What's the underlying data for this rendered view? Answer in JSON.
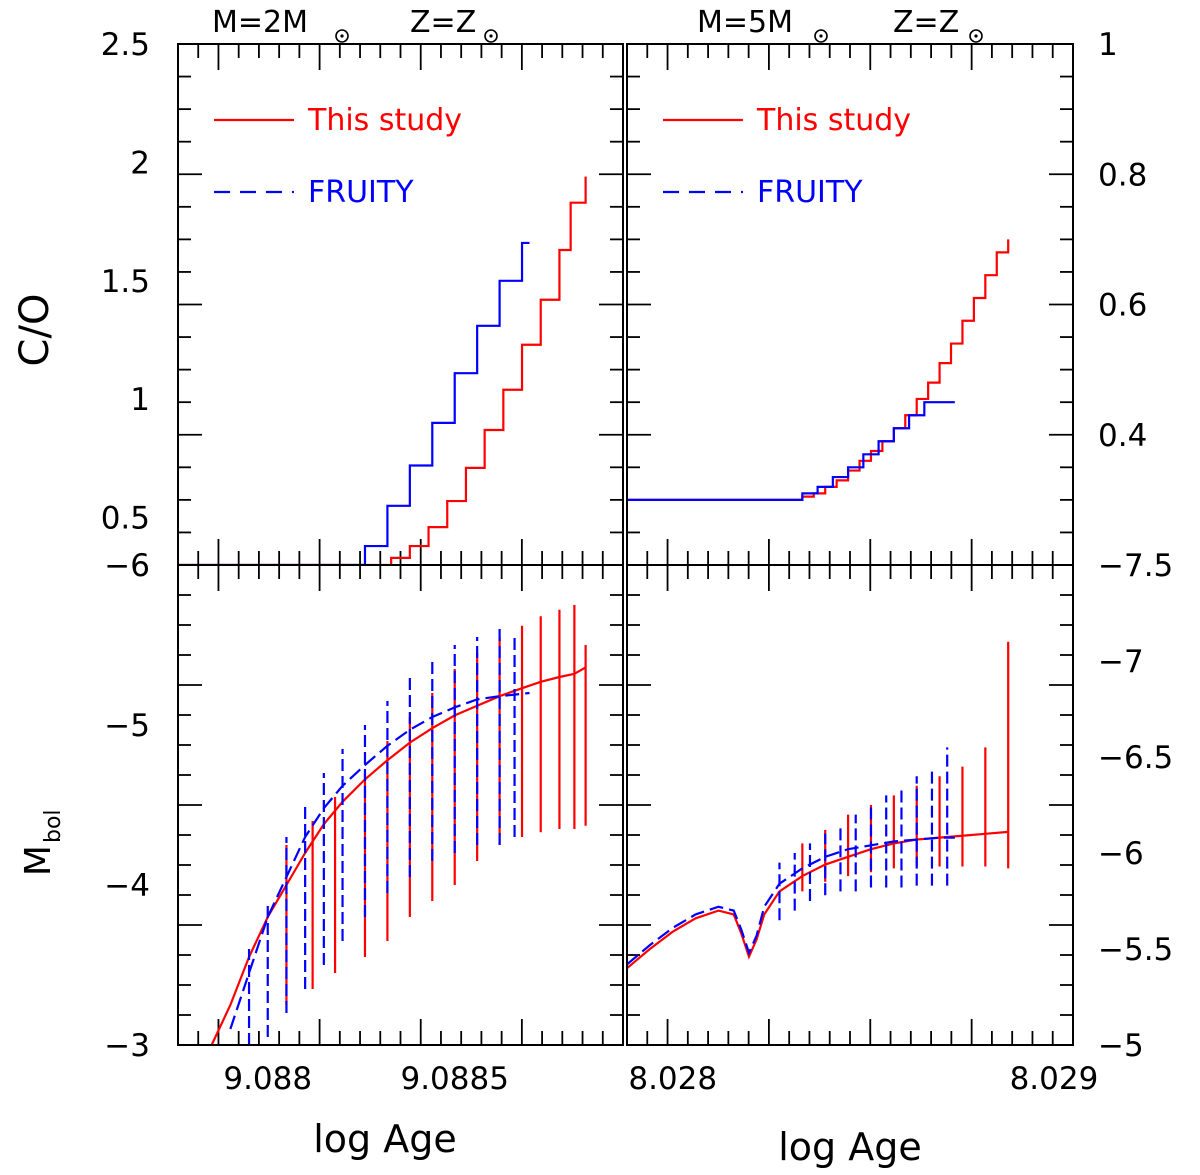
{
  "figure": {
    "left_panel_header": {
      "mass": "M=2M",
      "metallicity": "Z=Z"
    },
    "right_panel_header": {
      "mass": "M=5M",
      "metallicity": "Z=Z"
    },
    "xlabel": "log Age",
    "ylabel_top": "C/O",
    "ylabel_bottom_main": "M",
    "ylabel_bottom_sub": "bol",
    "colors": {
      "this_study": "#ff0000",
      "fruity": "#0000ff",
      "axis": "#000000"
    }
  },
  "chart_data": [
    {
      "id": "top-left",
      "type": "line",
      "ylabel": "C/O",
      "xlim": [
        9.08776,
        9.08895
      ],
      "ylim": [
        0.3,
        2.5
      ],
      "yticks": [
        "0.5",
        "1",
        "1.5",
        "2",
        "2.5"
      ],
      "ytick_values": [
        0.5,
        1.0,
        1.5,
        2.0,
        2.5
      ],
      "legend": {
        "placement": "top-left",
        "entries": [
          {
            "label": "This study",
            "style": "solid",
            "color": "#ff0000"
          },
          {
            "label": "FRUITY",
            "style": "dashed",
            "color": "#0000ff"
          }
        ]
      },
      "series": [
        {
          "name": "This study",
          "style": "step",
          "color": "#ff0000",
          "x": [
            9.08776,
            9.08833,
            9.08838,
            9.08843,
            9.08848,
            9.08853,
            9.08858,
            9.08863,
            9.08868,
            9.08873,
            9.08878,
            9.08881,
            9.08885
          ],
          "y": [
            0.3,
            0.33,
            0.38,
            0.46,
            0.57,
            0.71,
            0.87,
            1.04,
            1.23,
            1.42,
            1.63,
            1.83,
            1.94
          ]
        },
        {
          "name": "FRUITY",
          "style": "step",
          "color": "#0000ff",
          "x": [
            9.08776,
            9.08826,
            9.08832,
            9.08838,
            9.08844,
            9.0885,
            9.08856,
            9.08862,
            9.08868,
            9.0887
          ],
          "y": [
            0.3,
            0.38,
            0.55,
            0.72,
            0.9,
            1.11,
            1.31,
            1.5,
            1.66,
            1.66
          ]
        }
      ]
    },
    {
      "id": "top-right",
      "type": "line",
      "xlim": [
        8.02788,
        8.02905
      ],
      "ylim": [
        0.2,
        1.0
      ],
      "yticks": [
        "0.4",
        "0.6",
        "0.8",
        "1"
      ],
      "ytick_values": [
        0.4,
        0.6,
        0.8,
        1.0
      ],
      "legend": {
        "placement": "top-left",
        "entries": [
          {
            "label": "This study",
            "style": "solid",
            "color": "#ff0000"
          },
          {
            "label": "FRUITY",
            "style": "dashed",
            "color": "#0000ff"
          }
        ]
      },
      "series": [
        {
          "name": "This study",
          "style": "step",
          "color": "#ff0000",
          "x": [
            8.02788,
            8.0283,
            8.02834,
            8.02837,
            8.0284,
            8.02843,
            8.02846,
            8.02849,
            8.02852,
            8.02855,
            8.02858,
            8.02861,
            8.02864,
            8.02867,
            8.0287,
            8.02873,
            8.02876,
            8.02879,
            8.02882,
            8.02885,
            8.02888
          ],
          "y": [
            0.3,
            0.3,
            0.305,
            0.31,
            0.32,
            0.33,
            0.345,
            0.36,
            0.375,
            0.39,
            0.41,
            0.43,
            0.455,
            0.48,
            0.51,
            0.54,
            0.575,
            0.61,
            0.645,
            0.68,
            0.7
          ]
        },
        {
          "name": "FRUITY",
          "style": "step",
          "color": "#0000ff",
          "x": [
            8.02788,
            8.0283,
            8.02834,
            8.02838,
            8.02842,
            8.02846,
            8.0285,
            8.02854,
            8.02858,
            8.02862,
            8.02866,
            8.0287,
            8.02874
          ],
          "y": [
            0.3,
            0.3,
            0.31,
            0.32,
            0.335,
            0.35,
            0.37,
            0.39,
            0.41,
            0.43,
            0.45,
            0.45,
            0.45
          ]
        }
      ]
    },
    {
      "id": "bottom-left",
      "type": "line",
      "ylabel": "Mbol",
      "xlim": [
        9.08776,
        9.08895
      ],
      "xticks": [
        "9.088",
        "9.0885"
      ],
      "xtick_values": [
        9.088,
        9.0885
      ],
      "ylim": [
        -3.0,
        -6.0
      ],
      "yticks": [
        "-3",
        "-4",
        "-5",
        "-6"
      ],
      "ytick_values": [
        -3,
        -4,
        -5,
        -6
      ],
      "series": [
        {
          "name": "This study",
          "style": "solid",
          "color": "#ff0000",
          "x": [
            9.08785,
            9.0879,
            9.08795,
            9.088,
            9.08805,
            9.0881,
            9.08815,
            9.0882,
            9.08826,
            9.08832,
            9.08838,
            9.08844,
            9.0885,
            9.08856,
            9.08862,
            9.08868,
            9.08873,
            9.08878,
            9.08882,
            9.08885
          ],
          "y": [
            -3.0,
            -3.25,
            -3.55,
            -3.8,
            -4.0,
            -4.2,
            -4.38,
            -4.52,
            -4.66,
            -4.78,
            -4.89,
            -4.98,
            -5.06,
            -5.12,
            -5.18,
            -5.23,
            -5.27,
            -5.3,
            -5.32,
            -5.36
          ],
          "pulse_x": [
            9.08805,
            9.08812,
            9.08818,
            9.08826,
            9.08832,
            9.08838,
            9.08844,
            9.0885,
            9.08856,
            9.08862,
            9.08868,
            9.08873,
            9.08878,
            9.08882,
            9.08885
          ],
          "pulse_high": [
            -4.25,
            -4.4,
            -4.55,
            -4.7,
            -4.9,
            -5.05,
            -5.2,
            -5.35,
            -5.45,
            -5.55,
            -5.62,
            -5.68,
            -5.72,
            -5.75,
            -5.5
          ],
          "pulse_low": [
            -3.25,
            -3.35,
            -3.45,
            -3.55,
            -3.65,
            -3.8,
            -3.9,
            -4.0,
            -4.15,
            -4.25,
            -4.3,
            -4.33,
            -4.35,
            -4.35,
            -4.37
          ]
        },
        {
          "name": "FRUITY",
          "style": "dashed",
          "color": "#0000ff",
          "x": [
            9.0879,
            9.08795,
            9.088,
            9.08805,
            9.0881,
            9.08815,
            9.0882,
            9.08826,
            9.08832,
            9.08838,
            9.08844,
            9.0885,
            9.08856,
            9.08862,
            9.08866,
            9.0887
          ],
          "y": [
            -3.1,
            -3.45,
            -3.8,
            -4.05,
            -4.3,
            -4.48,
            -4.62,
            -4.75,
            -4.87,
            -4.97,
            -5.05,
            -5.11,
            -5.16,
            -5.18,
            -5.19,
            -5.2
          ],
          "pulse_x": [
            9.08795,
            9.088,
            9.08805,
            9.0881,
            9.08815,
            9.0882,
            9.08826,
            9.08832,
            9.08838,
            9.08844,
            9.0885,
            9.08856,
            9.08862,
            9.08866
          ],
          "pulse_high": [
            -3.6,
            -3.9,
            -4.3,
            -4.5,
            -4.7,
            -4.85,
            -5.0,
            -5.15,
            -5.3,
            -5.4,
            -5.5,
            -5.55,
            -5.6,
            -5.55
          ],
          "pulse_low": [
            -3.0,
            -3.05,
            -3.2,
            -3.35,
            -3.5,
            -3.65,
            -3.8,
            -3.95,
            -4.05,
            -4.15,
            -4.2,
            -4.25,
            -4.25,
            -4.3
          ]
        }
      ]
    },
    {
      "id": "bottom-right",
      "type": "line",
      "xlim": [
        8.02788,
        8.02905
      ],
      "xticks": [
        "8.028",
        "8.029"
      ],
      "xtick_values": [
        8.028,
        8.029
      ],
      "ylim": [
        -5.0,
        -7.5
      ],
      "yticks": [
        "-5",
        "-5.5",
        "-6",
        "-6.5",
        "-7",
        "-7.5"
      ],
      "ytick_values": [
        -5.0,
        -5.5,
        -6.0,
        -6.5,
        -7.0,
        -7.5
      ],
      "series": [
        {
          "name": "This study",
          "style": "solid",
          "color": "#ff0000",
          "x": [
            8.02788,
            8.02794,
            8.028,
            8.02806,
            8.02812,
            8.02816,
            8.02818,
            8.0282,
            8.02822,
            8.02824,
            8.02828,
            8.02834,
            8.0284,
            8.02846,
            8.02852,
            8.02858,
            8.02864,
            8.0287,
            8.02876,
            8.02882,
            8.02888
          ],
          "y": [
            -5.4,
            -5.5,
            -5.59,
            -5.66,
            -5.7,
            -5.68,
            -5.58,
            -5.46,
            -5.55,
            -5.68,
            -5.8,
            -5.88,
            -5.94,
            -5.98,
            -6.02,
            -6.05,
            -6.07,
            -6.08,
            -6.09,
            -6.1,
            -6.11
          ],
          "pulse_x": [
            8.02834,
            8.0284,
            8.02846,
            8.02852,
            8.02858,
            8.02864,
            8.0287,
            8.02876,
            8.02882,
            8.02888
          ],
          "pulse_high": [
            -6.05,
            -6.12,
            -6.2,
            -6.25,
            -6.3,
            -6.35,
            -6.4,
            -6.45,
            -6.55,
            -7.1
          ],
          "pulse_low": [
            -5.8,
            -5.85,
            -5.88,
            -5.9,
            -5.92,
            -5.93,
            -5.93,
            -5.93,
            -5.93,
            -5.92
          ]
        },
        {
          "name": "FRUITY",
          "style": "dashed",
          "color": "#0000ff",
          "x": [
            8.02788,
            8.02794,
            8.028,
            8.02806,
            8.02812,
            8.02816,
            8.02818,
            8.0282,
            8.02822,
            8.02824,
            8.02828,
            8.02834,
            8.0284,
            8.02846,
            8.02852,
            8.02858,
            8.02864,
            8.0287,
            8.02874
          ],
          "y": [
            -5.42,
            -5.52,
            -5.61,
            -5.68,
            -5.72,
            -5.7,
            -5.6,
            -5.48,
            -5.57,
            -5.72,
            -5.84,
            -5.92,
            -5.98,
            -6.02,
            -6.04,
            -6.06,
            -6.07,
            -6.08,
            -6.08
          ],
          "pulse_x": [
            8.02828,
            8.02832,
            8.02836,
            8.0284,
            8.02844,
            8.02848,
            8.02852,
            8.02856,
            8.0286,
            8.02864,
            8.02868,
            8.02872
          ],
          "pulse_high": [
            -5.95,
            -6.0,
            -6.05,
            -6.1,
            -6.15,
            -6.2,
            -6.25,
            -6.3,
            -6.35,
            -6.4,
            -6.45,
            -6.55
          ],
          "pulse_low": [
            -5.65,
            -5.7,
            -5.75,
            -5.78,
            -5.8,
            -5.8,
            -5.82,
            -5.82,
            -5.82,
            -5.83,
            -5.83,
            -5.83
          ]
        }
      ]
    }
  ]
}
